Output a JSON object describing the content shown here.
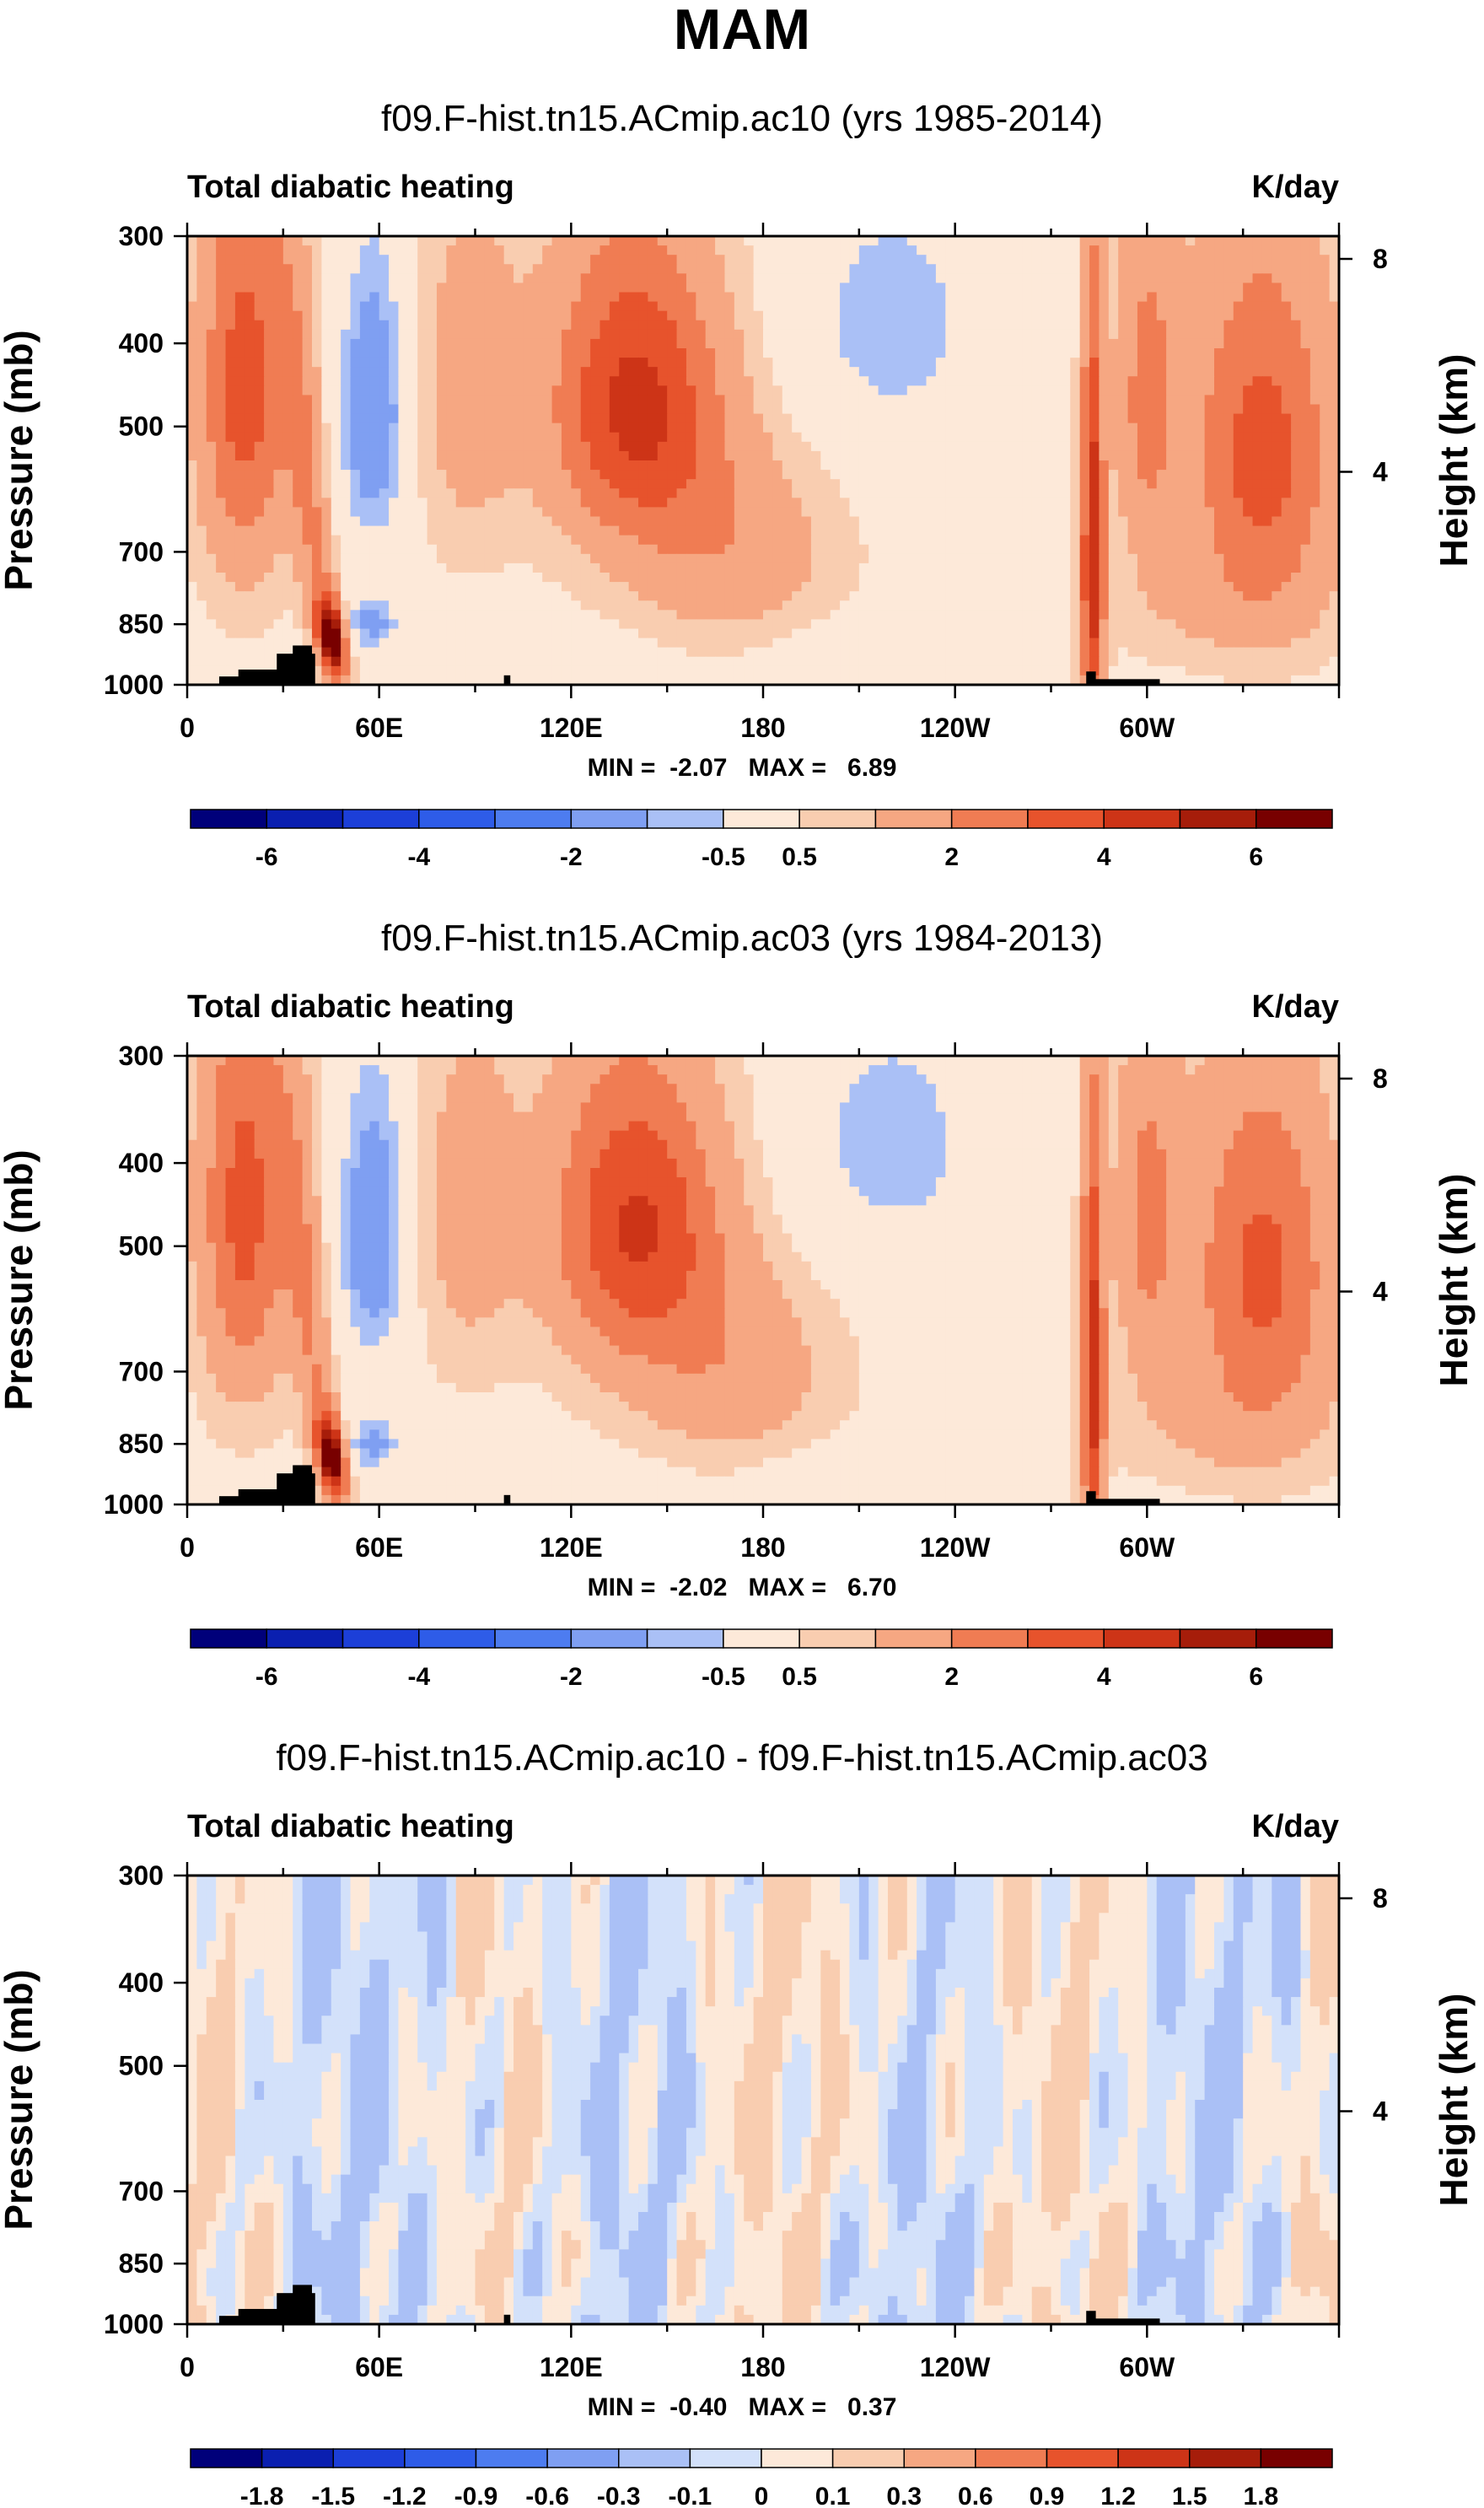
{
  "figure": {
    "title": "MAM"
  },
  "chart_data": [
    {
      "type": "heatmap",
      "title": "f09.F-hist.tn15.ACmip.ac10 (yrs 1985-2014)",
      "left_label": "Total diabatic heating",
      "right_label": "K/day",
      "xlabel": "",
      "ylabel": "Pressure (mb)",
      "ylabel_right": "Height (km)",
      "x_ticks": [
        "0",
        "60E",
        "120E",
        "180",
        "120W",
        "60W"
      ],
      "y_ticks": [
        "300",
        "400",
        "500",
        "700",
        "850",
        "1000"
      ],
      "y_right_ticks": [
        "8",
        "4"
      ],
      "min_max_text": "MIN =  -2.07   MAX =   6.89",
      "min": -2.07,
      "max": 6.89,
      "colorbar_labels": [
        "-6",
        "-4",
        "-2",
        "-0.5",
        "0.5",
        "2",
        "4",
        "6"
      ],
      "levels": [
        -7,
        -6,
        -5,
        -4,
        -3,
        -2,
        -1,
        -0.5,
        0.5,
        1,
        2,
        3,
        4,
        5,
        6,
        7
      ]
    },
    {
      "type": "heatmap",
      "title": "f09.F-hist.tn15.ACmip.ac03 (yrs 1984-2013)",
      "left_label": "Total diabatic heating",
      "right_label": "K/day",
      "xlabel": "",
      "ylabel": "Pressure (mb)",
      "ylabel_right": "Height (km)",
      "x_ticks": [
        "0",
        "60E",
        "120E",
        "180",
        "120W",
        "60W"
      ],
      "y_ticks": [
        "300",
        "400",
        "500",
        "700",
        "850",
        "1000"
      ],
      "y_right_ticks": [
        "8",
        "4"
      ],
      "min_max_text": "MIN =  -2.02   MAX =   6.70",
      "min": -2.02,
      "max": 6.7,
      "colorbar_labels": [
        "-6",
        "-4",
        "-2",
        "-0.5",
        "0.5",
        "2",
        "4",
        "6"
      ],
      "levels": [
        -7,
        -6,
        -5,
        -4,
        -3,
        -2,
        -1,
        -0.5,
        0.5,
        1,
        2,
        3,
        4,
        5,
        6,
        7
      ]
    },
    {
      "type": "heatmap",
      "title": "f09.F-hist.tn15.ACmip.ac10 - f09.F-hist.tn15.ACmip.ac03",
      "left_label": "Total diabatic heating",
      "right_label": "K/day",
      "xlabel": "",
      "ylabel": "Pressure (mb)",
      "ylabel_right": "Height (km)",
      "x_ticks": [
        "0",
        "60E",
        "120E",
        "180",
        "120W",
        "60W"
      ],
      "y_ticks": [
        "300",
        "400",
        "500",
        "700",
        "850",
        "1000"
      ],
      "y_right_ticks": [
        "8",
        "4"
      ],
      "min_max_text": "MIN =  -0.40   MAX =   0.37",
      "min": -0.4,
      "max": 0.37,
      "colorbar_labels": [
        "-1.8",
        "-1.5",
        "-1.2",
        "-0.9",
        "-0.6",
        "-0.3",
        "-0.1",
        "0",
        "0.1",
        "0.3",
        "0.6",
        "0.9",
        "1.2",
        "1.5",
        "1.8"
      ],
      "levels": [
        -2.1,
        -1.8,
        -1.5,
        -1.2,
        -0.9,
        -0.6,
        -0.3,
        -0.1,
        0,
        0.1,
        0.3,
        0.6,
        0.9,
        1.2,
        1.5,
        1.8,
        2.1
      ]
    }
  ],
  "colors": {
    "palette": [
      "#00007a",
      "#0a1fb0",
      "#1c3fd8",
      "#2e5ce8",
      "#4d7cf0",
      "#7f9ff2",
      "#aac0f6",
      "#d3e1fa",
      "#fde9d9",
      "#f9cdb0",
      "#f6a782",
      "#f07c53",
      "#e7532c",
      "#cd3417",
      "#a61d0a",
      "#780000"
    ],
    "topography": "#000000"
  }
}
